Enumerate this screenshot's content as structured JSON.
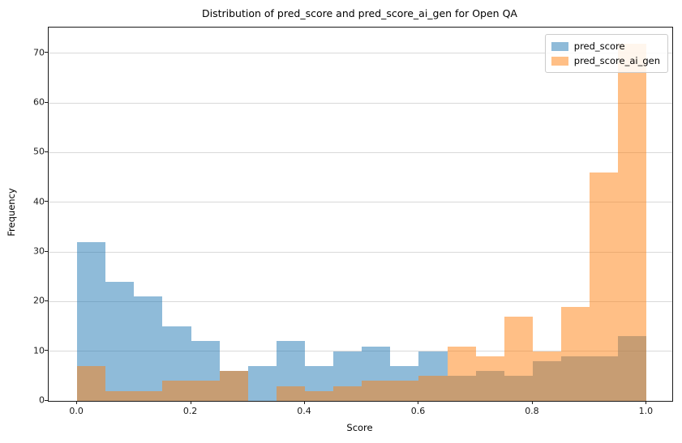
{
  "chart_data": {
    "type": "histogram",
    "title": "Distribution of pred_score and pred_score_ai_gen for Open QA",
    "xlabel": "Score",
    "ylabel": "Frequency",
    "bin_start": 0.0,
    "bin_width": 0.05,
    "n_bins": 20,
    "series": [
      {
        "name": "pred_score",
        "color": "#1f77b4",
        "fill_rgba": "rgba(31,119,180,0.5)",
        "counts": [
          32,
          24,
          21,
          15,
          12,
          6,
          7,
          12,
          7,
          10,
          11,
          7,
          10,
          5,
          6,
          5,
          8,
          9,
          9,
          13
        ]
      },
      {
        "name": "pred_score_ai_gen",
        "color": "#ff7f0e",
        "fill_rgba": "rgba(255,127,14,0.5)",
        "counts": [
          7,
          2,
          2,
          4,
          4,
          6,
          0,
          3,
          2,
          3,
          4,
          4,
          5,
          11,
          9,
          17,
          10,
          19,
          46,
          72
        ]
      }
    ],
    "x_tick_values": [
      0.0,
      0.2,
      0.4,
      0.6,
      0.8,
      1.0
    ],
    "x_tick_labels": [
      "0.0",
      "0.2",
      "0.4",
      "0.6",
      "0.8",
      "1.0"
    ],
    "y_tick_values": [
      0,
      10,
      20,
      30,
      40,
      50,
      60,
      70
    ],
    "y_tick_labels": [
      "0",
      "10",
      "20",
      "30",
      "40",
      "50",
      "60",
      "70"
    ],
    "xlim": [
      -0.05,
      1.045
    ],
    "ylim": [
      0,
      75.2
    ],
    "grid": "y",
    "legend": {
      "position": "upper right",
      "entries": [
        "pred_score",
        "pred_score_ai_gen"
      ]
    },
    "grid_color": "#d9d9d9",
    "spine_color": "#1a1a1a"
  }
}
